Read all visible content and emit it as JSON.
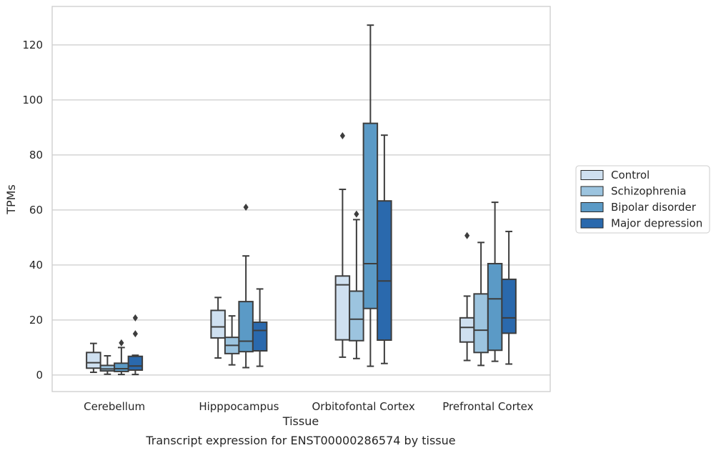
{
  "caption": "Transcript expression for ENST00000286574 by tissue",
  "chart_data": {
    "type": "boxplot",
    "xlabel": "Tissue",
    "ylabel": "TPMs",
    "ylim": [
      -6,
      134
    ],
    "yticks": [
      0,
      20,
      40,
      60,
      80,
      100,
      120
    ],
    "grid": "horizontal",
    "legend_position": "right",
    "categories": [
      "Cerebellum",
      "Hipppocampus",
      "Orbitofontal Cortex",
      "Prefrontal Cortex"
    ],
    "series": [
      {
        "name": "Control",
        "color": "#cfe0f0",
        "boxes": [
          {
            "whisker_low": 1.0,
            "q1": 2.5,
            "median": 4.5,
            "q3": 8.2,
            "whisker_high": 11.5,
            "outliers": []
          },
          {
            "whisker_low": 6.2,
            "q1": 13.5,
            "median": 17.5,
            "q3": 23.5,
            "whisker_high": 28.2,
            "outliers": []
          },
          {
            "whisker_low": 6.5,
            "q1": 12.8,
            "median": 32.8,
            "q3": 36.0,
            "whisker_high": 67.5,
            "outliers": [
              87.0
            ]
          },
          {
            "whisker_low": 5.3,
            "q1": 12.0,
            "median": 17.3,
            "q3": 20.8,
            "whisker_high": 28.7,
            "outliers": [
              50.7
            ]
          }
        ]
      },
      {
        "name": "Schizophrenia",
        "color": "#9cc4df",
        "boxes": [
          {
            "whisker_low": 0.3,
            "q1": 1.5,
            "median": 2.2,
            "q3": 3.5,
            "whisker_high": 7.0,
            "outliers": []
          },
          {
            "whisker_low": 3.7,
            "q1": 7.8,
            "median": 10.8,
            "q3": 13.7,
            "whisker_high": 21.5,
            "outliers": []
          },
          {
            "whisker_low": 6.0,
            "q1": 12.5,
            "median": 20.3,
            "q3": 30.5,
            "whisker_high": 56.5,
            "outliers": [
              58.5
            ]
          },
          {
            "whisker_low": 3.5,
            "q1": 8.2,
            "median": 16.3,
            "q3": 29.5,
            "whisker_high": 48.2,
            "outliers": []
          }
        ]
      },
      {
        "name": "Bipolar disorder",
        "color": "#5b9ac6",
        "boxes": [
          {
            "whisker_low": 0.2,
            "q1": 1.3,
            "median": 2.3,
            "q3": 4.3,
            "whisker_high": 10.0,
            "outliers": [
              11.7
            ]
          },
          {
            "whisker_low": 2.7,
            "q1": 8.5,
            "median": 12.3,
            "q3": 26.7,
            "whisker_high": 43.3,
            "outliers": [
              61.0
            ]
          },
          {
            "whisker_low": 3.2,
            "q1": 24.2,
            "median": 40.5,
            "q3": 91.5,
            "whisker_high": 127.2,
            "outliers": []
          },
          {
            "whisker_low": 5.0,
            "q1": 9.0,
            "median": 27.7,
            "q3": 40.5,
            "whisker_high": 62.8,
            "outliers": []
          }
        ]
      },
      {
        "name": "Major depression",
        "color": "#2a69ad",
        "boxes": [
          {
            "whisker_low": 0.2,
            "q1": 1.8,
            "median": 3.3,
            "q3": 6.8,
            "whisker_high": 7.2,
            "outliers": [
              15.0,
              20.8
            ]
          },
          {
            "whisker_low": 3.2,
            "q1": 8.8,
            "median": 16.2,
            "q3": 19.2,
            "whisker_high": 31.3,
            "outliers": []
          },
          {
            "whisker_low": 4.2,
            "q1": 12.7,
            "median": 34.2,
            "q3": 63.3,
            "whisker_high": 87.2,
            "outliers": []
          },
          {
            "whisker_low": 4.0,
            "q1": 15.2,
            "median": 20.8,
            "q3": 34.8,
            "whisker_high": 52.2,
            "outliers": []
          }
        ]
      }
    ]
  }
}
